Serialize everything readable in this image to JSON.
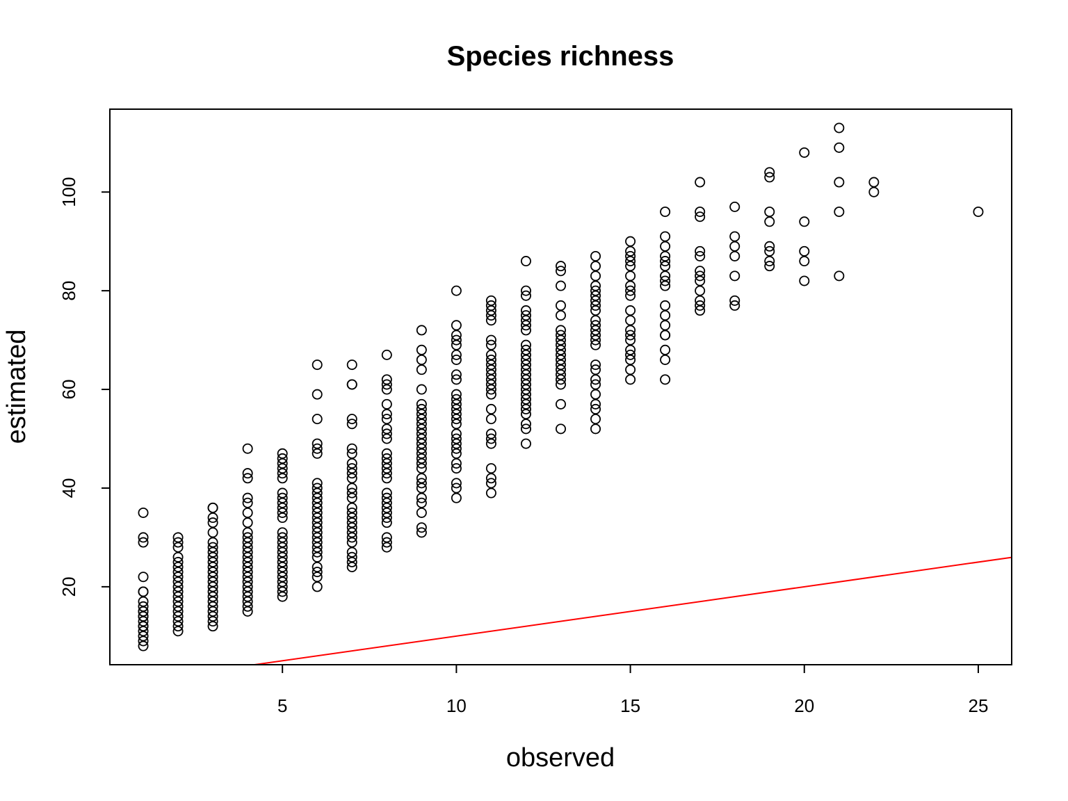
{
  "chart_data": {
    "type": "scatter",
    "title": "Species richness",
    "xlabel": "observed",
    "ylabel": "estimated",
    "xlim": [
      0.04,
      25.96
    ],
    "ylim": [
      4.2,
      116.8
    ],
    "x_ticks": [
      5,
      10,
      15,
      20,
      25
    ],
    "y_ticks": [
      20,
      40,
      60,
      80,
      100
    ],
    "grid": false,
    "legend": "none",
    "point_color": "#000000",
    "line_color": "#ff0000",
    "reference_line": {
      "label": "",
      "intercept": 0,
      "slope": 1
    },
    "points": [
      [
        1,
        35
      ],
      [
        1,
        30
      ],
      [
        1,
        29
      ],
      [
        1,
        22
      ],
      [
        1,
        19
      ],
      [
        1,
        19
      ],
      [
        1,
        17
      ],
      [
        1,
        16
      ],
      [
        1,
        15
      ],
      [
        1,
        15
      ],
      [
        1,
        14
      ],
      [
        1,
        14
      ],
      [
        1,
        13
      ],
      [
        1,
        12
      ],
      [
        1,
        12
      ],
      [
        1,
        11
      ],
      [
        1,
        10
      ],
      [
        1,
        9
      ],
      [
        1,
        8
      ],
      [
        2,
        30
      ],
      [
        2,
        29
      ],
      [
        2,
        28
      ],
      [
        2,
        26
      ],
      [
        2,
        25
      ],
      [
        2,
        24
      ],
      [
        2,
        23
      ],
      [
        2,
        22
      ],
      [
        2,
        21
      ],
      [
        2,
        20
      ],
      [
        2,
        19
      ],
      [
        2,
        18
      ],
      [
        2,
        17
      ],
      [
        2,
        16
      ],
      [
        2,
        15
      ],
      [
        2,
        14
      ],
      [
        2,
        13
      ],
      [
        2,
        12
      ],
      [
        2,
        11
      ],
      [
        3,
        36
      ],
      [
        3,
        36
      ],
      [
        3,
        34
      ],
      [
        3,
        33
      ],
      [
        3,
        31
      ],
      [
        3,
        29
      ],
      [
        3,
        28
      ],
      [
        3,
        27
      ],
      [
        3,
        26
      ],
      [
        3,
        25
      ],
      [
        3,
        24
      ],
      [
        3,
        23
      ],
      [
        3,
        22
      ],
      [
        3,
        21
      ],
      [
        3,
        20
      ],
      [
        3,
        19
      ],
      [
        3,
        18
      ],
      [
        3,
        17
      ],
      [
        3,
        16
      ],
      [
        3,
        15
      ],
      [
        3,
        14
      ],
      [
        3,
        13
      ],
      [
        3,
        12
      ],
      [
        4,
        48
      ],
      [
        4,
        43
      ],
      [
        4,
        42
      ],
      [
        4,
        38
      ],
      [
        4,
        37
      ],
      [
        4,
        35
      ],
      [
        4,
        33
      ],
      [
        4,
        31
      ],
      [
        4,
        30
      ],
      [
        4,
        29
      ],
      [
        4,
        28
      ],
      [
        4,
        27
      ],
      [
        4,
        26
      ],
      [
        4,
        25
      ],
      [
        4,
        24
      ],
      [
        4,
        23
      ],
      [
        4,
        22
      ],
      [
        4,
        21
      ],
      [
        4,
        20
      ],
      [
        4,
        19
      ],
      [
        4,
        18
      ],
      [
        4,
        17
      ],
      [
        4,
        16
      ],
      [
        4,
        15
      ],
      [
        5,
        47
      ],
      [
        5,
        46
      ],
      [
        5,
        45
      ],
      [
        5,
        44
      ],
      [
        5,
        43
      ],
      [
        5,
        42
      ],
      [
        5,
        39
      ],
      [
        5,
        38
      ],
      [
        5,
        37
      ],
      [
        5,
        36
      ],
      [
        5,
        35
      ],
      [
        5,
        34
      ],
      [
        5,
        31
      ],
      [
        5,
        30
      ],
      [
        5,
        29
      ],
      [
        5,
        28
      ],
      [
        5,
        27
      ],
      [
        5,
        26
      ],
      [
        5,
        25
      ],
      [
        5,
        24
      ],
      [
        5,
        23
      ],
      [
        5,
        22
      ],
      [
        5,
        21
      ],
      [
        5,
        20
      ],
      [
        5,
        19
      ],
      [
        5,
        18
      ],
      [
        6,
        65
      ],
      [
        6,
        59
      ],
      [
        6,
        54
      ],
      [
        6,
        49
      ],
      [
        6,
        48
      ],
      [
        6,
        47
      ],
      [
        6,
        41
      ],
      [
        6,
        40
      ],
      [
        6,
        39
      ],
      [
        6,
        38
      ],
      [
        6,
        37
      ],
      [
        6,
        36
      ],
      [
        6,
        35
      ],
      [
        6,
        34
      ],
      [
        6,
        33
      ],
      [
        6,
        32
      ],
      [
        6,
        31
      ],
      [
        6,
        30
      ],
      [
        6,
        29
      ],
      [
        6,
        28
      ],
      [
        6,
        27
      ],
      [
        6,
        26
      ],
      [
        6,
        24
      ],
      [
        6,
        23
      ],
      [
        6,
        22
      ],
      [
        6,
        20
      ],
      [
        7,
        65
      ],
      [
        7,
        61
      ],
      [
        7,
        61
      ],
      [
        7,
        54
      ],
      [
        7,
        53
      ],
      [
        7,
        48
      ],
      [
        7,
        47
      ],
      [
        7,
        45
      ],
      [
        7,
        44
      ],
      [
        7,
        43
      ],
      [
        7,
        42
      ],
      [
        7,
        40
      ],
      [
        7,
        39
      ],
      [
        7,
        38
      ],
      [
        7,
        36
      ],
      [
        7,
        35
      ],
      [
        7,
        34
      ],
      [
        7,
        33
      ],
      [
        7,
        32
      ],
      [
        7,
        31
      ],
      [
        7,
        30
      ],
      [
        7,
        29
      ],
      [
        7,
        27
      ],
      [
        7,
        26
      ],
      [
        7,
        25
      ],
      [
        7,
        24
      ],
      [
        8,
        67
      ],
      [
        8,
        62
      ],
      [
        8,
        61
      ],
      [
        8,
        60
      ],
      [
        8,
        57
      ],
      [
        8,
        55
      ],
      [
        8,
        54
      ],
      [
        8,
        52
      ],
      [
        8,
        51
      ],
      [
        8,
        50
      ],
      [
        8,
        47
      ],
      [
        8,
        46
      ],
      [
        8,
        45
      ],
      [
        8,
        44
      ],
      [
        8,
        43
      ],
      [
        8,
        42
      ],
      [
        8,
        39
      ],
      [
        8,
        38
      ],
      [
        8,
        37
      ],
      [
        8,
        36
      ],
      [
        8,
        35
      ],
      [
        8,
        34
      ],
      [
        8,
        33
      ],
      [
        8,
        30
      ],
      [
        8,
        29
      ],
      [
        8,
        28
      ],
      [
        9,
        72
      ],
      [
        9,
        68
      ],
      [
        9,
        66
      ],
      [
        9,
        64
      ],
      [
        9,
        60
      ],
      [
        9,
        57
      ],
      [
        9,
        56
      ],
      [
        9,
        55
      ],
      [
        9,
        54
      ],
      [
        9,
        53
      ],
      [
        9,
        52
      ],
      [
        9,
        51
      ],
      [
        9,
        50
      ],
      [
        9,
        49
      ],
      [
        9,
        48
      ],
      [
        9,
        47
      ],
      [
        9,
        46
      ],
      [
        9,
        45
      ],
      [
        9,
        44
      ],
      [
        9,
        42
      ],
      [
        9,
        41
      ],
      [
        9,
        40
      ],
      [
        9,
        38
      ],
      [
        9,
        37
      ],
      [
        9,
        35
      ],
      [
        9,
        32
      ],
      [
        9,
        31
      ],
      [
        10,
        80
      ],
      [
        10,
        73
      ],
      [
        10,
        71
      ],
      [
        10,
        70
      ],
      [
        10,
        69
      ],
      [
        10,
        67
      ],
      [
        10,
        66
      ],
      [
        10,
        63
      ],
      [
        10,
        62
      ],
      [
        10,
        59
      ],
      [
        10,
        58
      ],
      [
        10,
        57
      ],
      [
        10,
        56
      ],
      [
        10,
        55
      ],
      [
        10,
        54
      ],
      [
        10,
        53
      ],
      [
        10,
        51
      ],
      [
        10,
        50
      ],
      [
        10,
        49
      ],
      [
        10,
        48
      ],
      [
        10,
        47
      ],
      [
        10,
        45
      ],
      [
        10,
        44
      ],
      [
        10,
        41
      ],
      [
        10,
        40
      ],
      [
        10,
        38
      ],
      [
        11,
        78
      ],
      [
        11,
        77
      ],
      [
        11,
        76
      ],
      [
        11,
        75
      ],
      [
        11,
        74
      ],
      [
        11,
        70
      ],
      [
        11,
        69
      ],
      [
        11,
        67
      ],
      [
        11,
        66
      ],
      [
        11,
        65
      ],
      [
        11,
        64
      ],
      [
        11,
        63
      ],
      [
        11,
        62
      ],
      [
        11,
        61
      ],
      [
        11,
        60
      ],
      [
        11,
        59
      ],
      [
        11,
        56
      ],
      [
        11,
        54
      ],
      [
        11,
        51
      ],
      [
        11,
        50
      ],
      [
        11,
        49
      ],
      [
        11,
        44
      ],
      [
        11,
        42
      ],
      [
        11,
        41
      ],
      [
        11,
        39
      ],
      [
        12,
        86
      ],
      [
        12,
        80
      ],
      [
        12,
        79
      ],
      [
        12,
        76
      ],
      [
        12,
        75
      ],
      [
        12,
        74
      ],
      [
        12,
        73
      ],
      [
        12,
        72
      ],
      [
        12,
        69
      ],
      [
        12,
        68
      ],
      [
        12,
        67
      ],
      [
        12,
        66
      ],
      [
        12,
        65
      ],
      [
        12,
        64
      ],
      [
        12,
        63
      ],
      [
        12,
        62
      ],
      [
        12,
        61
      ],
      [
        12,
        60
      ],
      [
        12,
        59
      ],
      [
        12,
        58
      ],
      [
        12,
        57
      ],
      [
        12,
        56
      ],
      [
        12,
        55
      ],
      [
        12,
        53
      ],
      [
        12,
        52
      ],
      [
        12,
        49
      ],
      [
        13,
        85
      ],
      [
        13,
        84
      ],
      [
        13,
        81
      ],
      [
        13,
        77
      ],
      [
        13,
        75
      ],
      [
        13,
        72
      ],
      [
        13,
        71
      ],
      [
        13,
        70
      ],
      [
        13,
        69
      ],
      [
        13,
        68
      ],
      [
        13,
        67
      ],
      [
        13,
        66
      ],
      [
        13,
        65
      ],
      [
        13,
        64
      ],
      [
        13,
        63
      ],
      [
        13,
        62
      ],
      [
        13,
        61
      ],
      [
        13,
        57
      ],
      [
        13,
        52
      ],
      [
        14,
        87
      ],
      [
        14,
        85
      ],
      [
        14,
        83
      ],
      [
        14,
        81
      ],
      [
        14,
        80
      ],
      [
        14,
        79
      ],
      [
        14,
        78
      ],
      [
        14,
        77
      ],
      [
        14,
        76
      ],
      [
        14,
        74
      ],
      [
        14,
        73
      ],
      [
        14,
        72
      ],
      [
        14,
        71
      ],
      [
        14,
        70
      ],
      [
        14,
        69
      ],
      [
        14,
        65
      ],
      [
        14,
        64
      ],
      [
        14,
        62
      ],
      [
        14,
        61
      ],
      [
        14,
        59
      ],
      [
        14,
        57
      ],
      [
        14,
        56
      ],
      [
        14,
        54
      ],
      [
        14,
        52
      ],
      [
        15,
        90
      ],
      [
        15,
        88
      ],
      [
        15,
        87
      ],
      [
        15,
        86
      ],
      [
        15,
        85
      ],
      [
        15,
        83
      ],
      [
        15,
        81
      ],
      [
        15,
        80
      ],
      [
        15,
        79
      ],
      [
        15,
        76
      ],
      [
        15,
        74
      ],
      [
        15,
        72
      ],
      [
        15,
        71
      ],
      [
        15,
        70
      ],
      [
        15,
        68
      ],
      [
        15,
        67
      ],
      [
        15,
        66
      ],
      [
        15,
        64
      ],
      [
        15,
        62
      ],
      [
        16,
        96
      ],
      [
        16,
        91
      ],
      [
        16,
        89
      ],
      [
        16,
        87
      ],
      [
        16,
        86
      ],
      [
        16,
        85
      ],
      [
        16,
        83
      ],
      [
        16,
        82
      ],
      [
        16,
        81
      ],
      [
        16,
        77
      ],
      [
        16,
        75
      ],
      [
        16,
        73
      ],
      [
        16,
        71
      ],
      [
        16,
        71
      ],
      [
        16,
        68
      ],
      [
        16,
        66
      ],
      [
        16,
        62
      ],
      [
        17,
        102
      ],
      [
        17,
        96
      ],
      [
        17,
        95
      ],
      [
        17,
        88
      ],
      [
        17,
        87
      ],
      [
        17,
        84
      ],
      [
        17,
        83
      ],
      [
        17,
        82
      ],
      [
        17,
        80
      ],
      [
        17,
        78
      ],
      [
        17,
        77
      ],
      [
        17,
        76
      ],
      [
        18,
        97
      ],
      [
        18,
        91
      ],
      [
        18,
        89
      ],
      [
        18,
        87
      ],
      [
        18,
        83
      ],
      [
        18,
        78
      ],
      [
        18,
        77
      ],
      [
        19,
        104
      ],
      [
        19,
        103
      ],
      [
        19,
        96
      ],
      [
        19,
        94
      ],
      [
        19,
        89
      ],
      [
        19,
        88
      ],
      [
        19,
        86
      ],
      [
        19,
        85
      ],
      [
        20,
        108
      ],
      [
        20,
        94
      ],
      [
        20,
        88
      ],
      [
        20,
        86
      ],
      [
        20,
        82
      ],
      [
        21,
        113
      ],
      [
        21,
        109
      ],
      [
        21,
        102
      ],
      [
        21,
        96
      ],
      [
        21,
        83
      ],
      [
        22,
        102
      ],
      [
        22,
        100
      ],
      [
        25,
        96
      ]
    ]
  }
}
